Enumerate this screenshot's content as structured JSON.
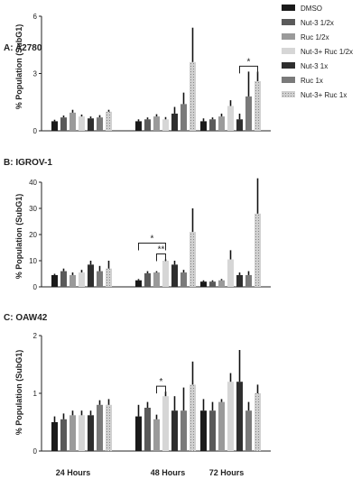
{
  "legend": [
    {
      "label": "DMSO",
      "color": "#1a1a1a"
    },
    {
      "label": "Nut-3 1/2x",
      "color": "#5a5a5a"
    },
    {
      "label": "Ruc  1/2x",
      "color": "#9a9a9a"
    },
    {
      "label": "Nut-3+ Ruc 1/2x",
      "color": "#d6d6d6"
    },
    {
      "label": "Nut-3 1x",
      "color": "#2e2e2e"
    },
    {
      "label": "Ruc 1x",
      "color": "#7a7a7a"
    },
    {
      "label": "Nut-3+ Ruc 1x",
      "color": "#c8c8c8",
      "dotted": true
    }
  ],
  "x_groups": [
    "24 Hours",
    "48 Hours",
    "72 Hours"
  ],
  "chart_data": [
    {
      "type": "bar",
      "title": "A: A2780",
      "ylabel": "% Population (SubG1)",
      "ylim": [
        0,
        6
      ],
      "yticks": [
        0,
        3,
        6
      ],
      "categories": [
        "24 Hours",
        "48 Hours",
        "72 Hours"
      ],
      "series": [
        {
          "name": "DMSO",
          "values": [
            0.5,
            0.5,
            0.5
          ],
          "errors": [
            0.08,
            0.1,
            0.15
          ]
        },
        {
          "name": "Nut-3 1/2x",
          "values": [
            0.7,
            0.6,
            0.6
          ],
          "errors": [
            0.1,
            0.1,
            0.1
          ]
        },
        {
          "name": "Ruc  1/2x",
          "values": [
            0.95,
            0.75,
            0.75
          ],
          "errors": [
            0.15,
            0.12,
            0.15
          ]
        },
        {
          "name": "Nut-3+ Ruc 1/2x",
          "values": [
            0.75,
            0.6,
            1.3
          ],
          "errors": [
            0.1,
            0.12,
            0.3
          ]
        },
        {
          "name": "Nut-3 1x",
          "values": [
            0.65,
            0.9,
            0.6
          ],
          "errors": [
            0.1,
            0.35,
            0.3
          ]
        },
        {
          "name": "Ruc 1x",
          "values": [
            0.7,
            1.4,
            1.8
          ],
          "errors": [
            0.12,
            0.6,
            1.3
          ]
        },
        {
          "name": "Nut-3+ Ruc 1x",
          "values": [
            1.0,
            3.6,
            2.6
          ],
          "errors": [
            0.1,
            1.8,
            0.5
          ]
        }
      ],
      "annotations": [
        {
          "text": "*",
          "group": 2,
          "from": 4,
          "to": 6
        }
      ]
    },
    {
      "type": "bar",
      "title": "B: IGROV-1",
      "ylabel": "% Population (SubG1)",
      "ylim": [
        0,
        40
      ],
      "yticks": [
        0,
        10,
        20,
        30,
        40
      ],
      "categories": [
        "24 Hours",
        "48 Hours",
        "72 Hours"
      ],
      "series": [
        {
          "name": "DMSO",
          "values": [
            4.5,
            2.5,
            2
          ],
          "errors": [
            0.5,
            0.5,
            0.5
          ]
        },
        {
          "name": "Nut-3 1/2x",
          "values": [
            6,
            5.2,
            2
          ],
          "errors": [
            1,
            0.8,
            0.5
          ]
        },
        {
          "name": "Ruc  1/2x",
          "values": [
            4.5,
            5.5,
            2.5
          ],
          "errors": [
            1,
            0.5,
            0.5
          ]
        },
        {
          "name": "Nut-3+ Ruc 1/2x",
          "values": [
            5.5,
            10,
            10.5
          ],
          "errors": [
            1,
            0.5,
            3.5
          ]
        },
        {
          "name": "Nut-3 1x",
          "values": [
            8.5,
            8.5,
            4.5
          ],
          "errors": [
            1.5,
            1.5,
            1
          ]
        },
        {
          "name": "Ruc 1x",
          "values": [
            6,
            5.5,
            4.5
          ],
          "errors": [
            2,
            1,
            1.5
          ]
        },
        {
          "name": "Nut-3+ Ruc 1x",
          "values": [
            7,
            21,
            28
          ],
          "errors": [
            3,
            9,
            13.5
          ]
        }
      ],
      "annotations": [
        {
          "text": "*",
          "group": 1,
          "from": 0,
          "to": 3,
          "level": 2
        },
        {
          "text": "**",
          "group": 1,
          "from": 2,
          "to": 3,
          "level": 1
        }
      ]
    },
    {
      "type": "bar",
      "title": "C: OAW42",
      "ylabel": "% Population (SubG1)",
      "ylim": [
        0,
        2
      ],
      "yticks": [
        0,
        1,
        2
      ],
      "categories": [
        "24 Hours",
        "48 Hours",
        "72 Hours"
      ],
      "series": [
        {
          "name": "DMSO",
          "values": [
            0.5,
            0.6,
            0.7
          ],
          "errors": [
            0.1,
            0.2,
            0.2
          ]
        },
        {
          "name": "Nut-3 1/2x",
          "values": [
            0.55,
            0.75,
            0.7
          ],
          "errors": [
            0.1,
            0.1,
            0.15
          ]
        },
        {
          "name": "Ruc  1/2x",
          "values": [
            0.62,
            0.55,
            0.85
          ],
          "errors": [
            0.08,
            0.08,
            0.05
          ]
        },
        {
          "name": "Nut-3+ Ruc 1/2x",
          "values": [
            0.62,
            0.95,
            1.2
          ],
          "errors": [
            0.08,
            0.08,
            0.15
          ]
        },
        {
          "name": "Nut-3 1x",
          "values": [
            0.62,
            0.7,
            1.2
          ],
          "errors": [
            0.08,
            0.25,
            0.55
          ]
        },
        {
          "name": "Ruc 1x",
          "values": [
            0.8,
            0.7,
            0.7
          ],
          "errors": [
            0.08,
            0.4,
            0.15
          ]
        },
        {
          "name": "Nut-3+ Ruc 1x",
          "values": [
            0.8,
            1.15,
            1.0
          ],
          "errors": [
            0.1,
            0.4,
            0.15
          ]
        }
      ],
      "annotations": [
        {
          "text": "*",
          "group": 1,
          "from": 2,
          "to": 3
        }
      ]
    }
  ]
}
